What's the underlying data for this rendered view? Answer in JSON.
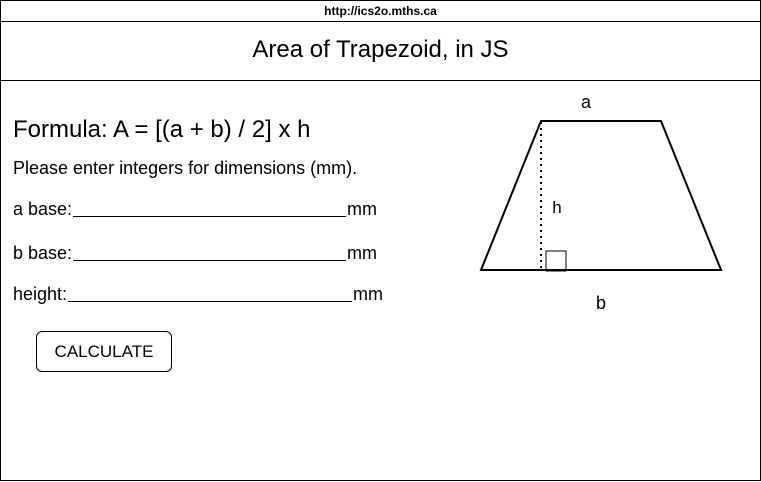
{
  "url": "http://ics2o.mths.ca",
  "page_title": "Area of Trapezoid, in JS",
  "formula": "Formula: A = [(a + b) / 2] x h",
  "instructions": "Please enter integers for dimensions (mm).",
  "fields": {
    "a": {
      "label": "a base:",
      "unit": "mm",
      "value": ""
    },
    "b": {
      "label": "b base:",
      "unit": "mm",
      "value": ""
    },
    "h": {
      "label": "height:",
      "unit": "mm",
      "value": ""
    }
  },
  "calculate_button": "CALCULATE",
  "diagram": {
    "label_a": "a",
    "label_b": "b",
    "label_h": "h"
  }
}
